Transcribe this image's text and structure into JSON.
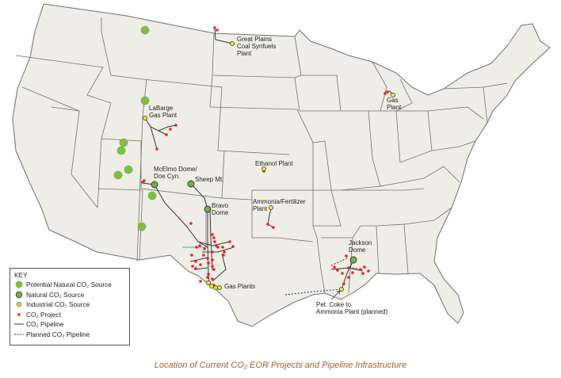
{
  "labels": {
    "great_plains": [
      "Great Plains",
      "Coal Synfuels",
      "Plant"
    ],
    "labarge": [
      "LaBarge",
      "Gas Plant"
    ],
    "mcelmo": [
      "McElmo Dome/",
      "Doe Cyn."
    ],
    "sheep": "Sheep Mt.",
    "bravo": [
      "Bravo",
      "Dome"
    ],
    "ethanol": "Ethanol Plant",
    "ammonia": [
      "Ammonia/Fertilizer",
      "Plant"
    ],
    "gas_plants": "Gas Plants",
    "jackson": [
      "Jackson",
      "Dome"
    ],
    "petcoke": [
      "Pet. Coke to",
      "Ammonia Plant (planned)"
    ],
    "michigan": [
      "Gas",
      "Plant"
    ]
  },
  "key": {
    "title": "KEY",
    "items": [
      {
        "label": "Potential Natural CO₂ Source",
        "symbol": "large-green-circle-dashed"
      },
      {
        "label": "Natural CO₂ Source",
        "symbol": "green-circle"
      },
      {
        "label": "Industrial CO₂ Source",
        "symbol": "yellow-circle"
      },
      {
        "label": "CO₂ Project",
        "symbol": "red-dot"
      },
      {
        "label": "CO₂ Pipeline",
        "symbol": "solid-line"
      },
      {
        "label": "Planned CO₂ Pipeline",
        "symbol": "dashed-line"
      }
    ]
  },
  "caption": "Location of Current CO₂ EOR Projects and Pipeline Infrastructure",
  "colors": {
    "land": "#efeee6",
    "border": "#6e6e6e",
    "potential": "#7fbf3f",
    "natural": "#77b043",
    "industrial": "#f2e51e",
    "project": "#ee1c25",
    "caption": "#a5612d"
  }
}
